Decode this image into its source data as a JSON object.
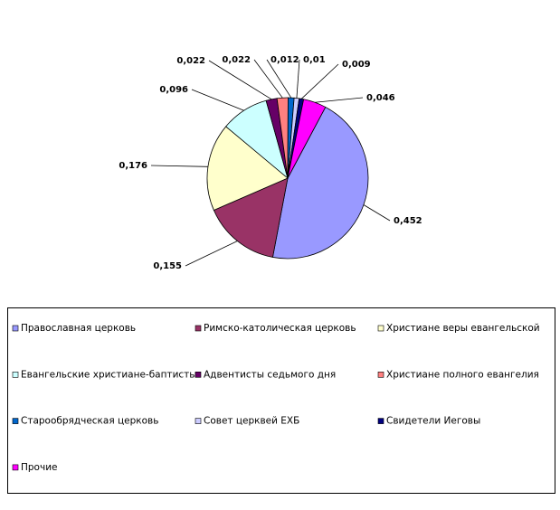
{
  "chart_data": {
    "type": "pie",
    "categories": [
      "Православная церковь",
      "Римско-католическая церковь",
      "Христиане веры евангельской",
      "Евангельские христиане-баптисты",
      "Адвентисты седьмого дня",
      "Христиане полного евангелия",
      "Старообрядческая церковь",
      "Совет церквей ЕХБ",
      "Свидетели Иеговы",
      "Прочие"
    ],
    "values": [
      0.452,
      0.155,
      0.176,
      0.096,
      0.022,
      0.022,
      0.012,
      0.01,
      0.009,
      0.046
    ],
    "value_labels": [
      "0,452",
      "0,155",
      "0,176",
      "0,096",
      "0,022",
      "0,022",
      "0,012",
      "0,01",
      "0,009",
      "0,046"
    ],
    "colors": [
      "#9999ff",
      "#993366",
      "#ffffcc",
      "#ccffff",
      "#660066",
      "#ff8080",
      "#0066cc",
      "#ccccff",
      "#000080",
      "#ff00ff"
    ]
  }
}
